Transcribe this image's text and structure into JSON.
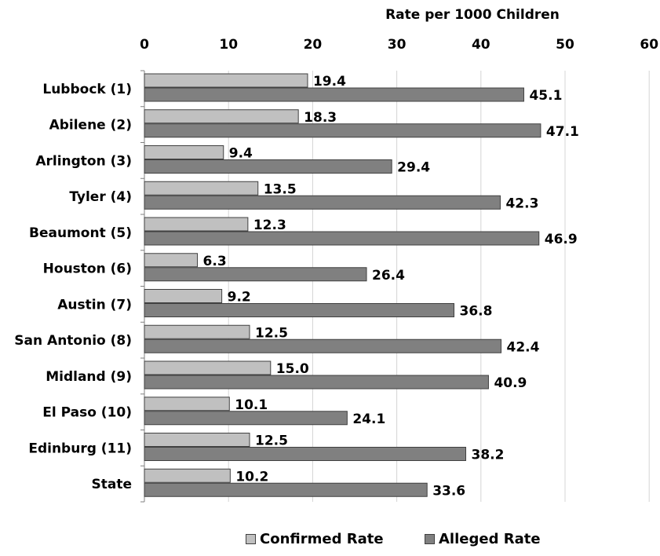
{
  "chart_data": {
    "type": "bar",
    "orientation": "horizontal",
    "axis_title": "Rate per 1000 Children",
    "x_axis_position": "top",
    "xlim": [
      0,
      60
    ],
    "xticks": [
      "0",
      "10",
      "20",
      "30",
      "40",
      "50",
      "60"
    ],
    "grid": true,
    "legend_position": "bottom",
    "categories": [
      "Lubbock (1)",
      "Abilene (2)",
      "Arlington (3)",
      "Tyler (4)",
      "Beaumont (5)",
      "Houston (6)",
      "Austin (7)",
      "San Antonio (8)",
      "Midland (9)",
      "El Paso (10)",
      "Edinburg (11)",
      "State"
    ],
    "series": [
      {
        "name": "Confirmed Rate",
        "color": "#c0c0c0",
        "values": [
          19.4,
          18.3,
          9.4,
          13.5,
          12.3,
          6.3,
          9.2,
          12.5,
          15.0,
          10.1,
          12.5,
          10.2
        ],
        "labels": [
          "19.4",
          "18.3",
          "9.4",
          "13.5",
          "12.3",
          "6.3",
          "9.2",
          "12.5",
          "15.0",
          "10.1",
          "12.5",
          "10.2"
        ]
      },
      {
        "name": "Alleged Rate",
        "color": "#808080",
        "values": [
          45.1,
          47.1,
          29.4,
          42.3,
          46.9,
          26.4,
          36.8,
          42.4,
          40.9,
          24.1,
          38.2,
          33.6
        ],
        "labels": [
          "45.1",
          "47.1",
          "29.4",
          "42.3",
          "46.9",
          "26.4",
          "36.8",
          "42.4",
          "40.9",
          "24.1",
          "38.2",
          "33.6"
        ]
      }
    ]
  }
}
